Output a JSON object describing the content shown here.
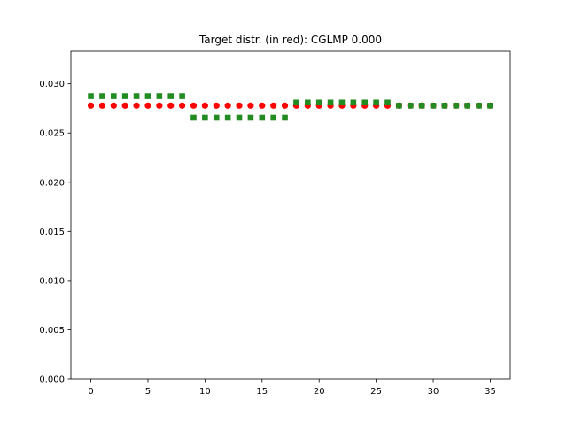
{
  "chart_data": {
    "type": "scatter",
    "title": "Target distr. (in red): CGLMP 0.000",
    "xlabel": "",
    "ylabel": "",
    "xlim": [
      -1.75,
      36.75
    ],
    "ylim": [
      0.0,
      0.0333
    ],
    "xticks": [
      0,
      5,
      10,
      15,
      20,
      25,
      30,
      35
    ],
    "xtick_labels": [
      "0",
      "5",
      "10",
      "15",
      "20",
      "25",
      "30",
      "35"
    ],
    "yticks": [
      0.0,
      0.005,
      0.01,
      0.015,
      0.02,
      0.025,
      0.03
    ],
    "ytick_labels": [
      "0.000",
      "0.005",
      "0.010",
      "0.015",
      "0.020",
      "0.025",
      "0.030"
    ],
    "grid": false,
    "legend": "none",
    "x": [
      0,
      1,
      2,
      3,
      4,
      5,
      6,
      7,
      8,
      9,
      10,
      11,
      12,
      13,
      14,
      15,
      16,
      17,
      18,
      19,
      20,
      21,
      22,
      23,
      24,
      25,
      26,
      27,
      28,
      29,
      30,
      31,
      32,
      33,
      34,
      35
    ],
    "series": [
      {
        "color": "#ff0000",
        "marker": "circle",
        "values": [
          0.02778,
          0.02778,
          0.02778,
          0.02778,
          0.02778,
          0.02778,
          0.02778,
          0.02778,
          0.02778,
          0.02778,
          0.02778,
          0.02778,
          0.02778,
          0.02778,
          0.02778,
          0.02778,
          0.02778,
          0.02778,
          0.02778,
          0.02778,
          0.02778,
          0.02778,
          0.02778,
          0.02778,
          0.02778,
          0.02778,
          0.02778,
          0.02778,
          0.02778,
          0.02778,
          0.02778,
          0.02778,
          0.02778,
          0.02778,
          0.02778,
          0.02778
        ]
      },
      {
        "color": "#228b22",
        "marker": "square",
        "values": [
          0.02875,
          0.02875,
          0.02875,
          0.02875,
          0.02875,
          0.02875,
          0.02875,
          0.02875,
          0.02875,
          0.02655,
          0.02655,
          0.02655,
          0.02655,
          0.02655,
          0.02655,
          0.02655,
          0.02655,
          0.02655,
          0.0281,
          0.0281,
          0.0281,
          0.0281,
          0.0281,
          0.0281,
          0.0281,
          0.0281,
          0.0281,
          0.02778,
          0.02778,
          0.02778,
          0.02778,
          0.02778,
          0.02778,
          0.02778,
          0.02778,
          0.02778
        ]
      }
    ]
  }
}
